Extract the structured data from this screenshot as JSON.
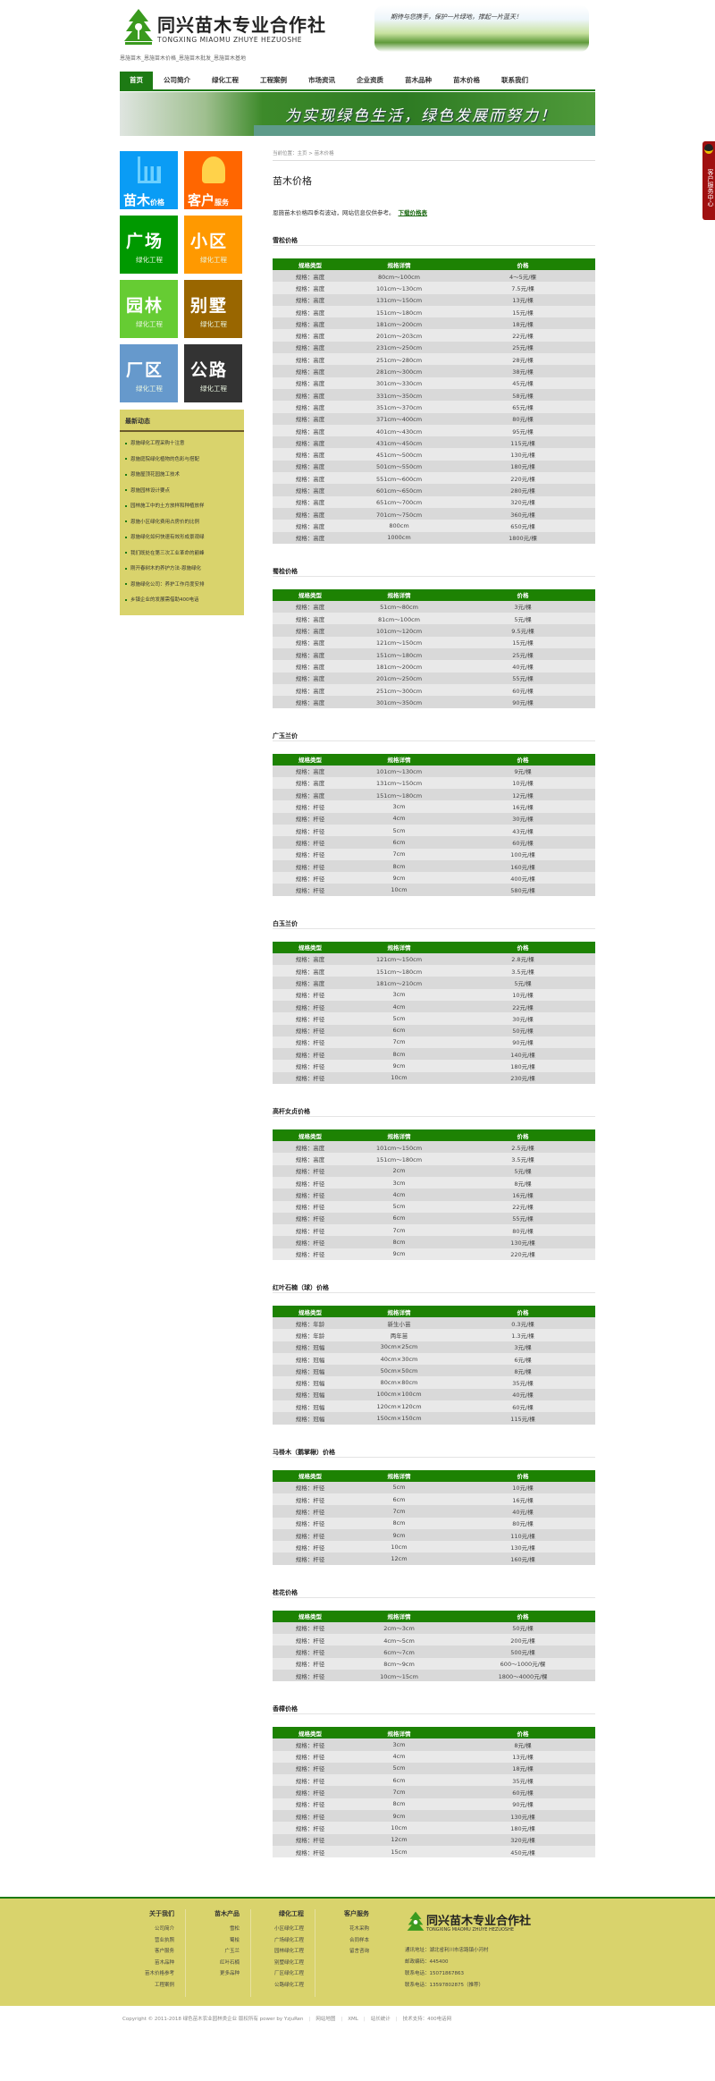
{
  "header": {
    "logo_cn": "同兴苗木专业合作社",
    "logo_en": "TONGXING MIAOMU ZHUYE HEZUOSHE",
    "tagline": "恩施苗木_恩施苗木价格_恩施苗木批发_恩施苗木基地",
    "slogan": "期待与您携手，保护一片绿地，撑起一片蓝天！"
  },
  "nav": [
    "首页",
    "公司简介",
    "绿化工程",
    "工程案例",
    "市场资讯",
    "企业资质",
    "苗木品种",
    "苗木价格",
    "联系我们"
  ],
  "banner": {
    "text": "为实现绿色生活，绿色发展而努力！"
  },
  "sidebar": {
    "tiles": [
      {
        "big": "苗木",
        "small": "价格",
        "color": "#0a9cf5",
        "icon": "chart-icon"
      },
      {
        "big": "客户",
        "small": "服务",
        "color": "#ff6600",
        "icon": "person-icon"
      },
      {
        "big": "广场",
        "small": "绿化工程",
        "color": "#009900"
      },
      {
        "big": "小区",
        "small": "绿化工程",
        "color": "#ff9900"
      },
      {
        "big": "园林",
        "small": "绿化工程",
        "color": "#66cc33"
      },
      {
        "big": "别墅",
        "small": "绿化工程",
        "color": "#996600"
      },
      {
        "big": "厂区",
        "small": "绿化工程",
        "color": "#6699cc"
      },
      {
        "big": "公路",
        "small": "绿化工程",
        "color": "#333333"
      }
    ],
    "news_title": "最新动态",
    "news": [
      "恩施绿化工程采购十注意",
      "恩施庭院绿化植物的色彩与搭配",
      "恩施屋顶花园施工技术",
      "恩施园林设计要点",
      "园林施工中的土方放样和种植放样",
      "恩施小区绿化费用占房价的比例",
      "恩施绿化如何快速有效形成景观绿",
      "我们既处在第三次工业革命的巅峰",
      "刚开春树木的养护方法-恩施绿化",
      "恩施绿化公司：养护工作月度安排",
      "乡镇企业的发展需借助400电话"
    ]
  },
  "main": {
    "breadcrumb": "当前位置：主页 > 苗木价格",
    "title": "苗木价格",
    "intro": "恩施苗木价格四季有波动，网站信息仅供参考。",
    "download_link": "下载价格表",
    "columns": [
      "规格类型",
      "规格详情",
      "价格"
    ],
    "sections": [
      {
        "title": "雪松价格",
        "rows": [
          [
            "规格：高度",
            "80cm～100cm",
            "4～5元/棵"
          ],
          [
            "规格：高度",
            "101cm～130cm",
            "7.5元/棵"
          ],
          [
            "规格：高度",
            "131cm～150cm",
            "13元/棵"
          ],
          [
            "规格：高度",
            "151cm～180cm",
            "15元/棵"
          ],
          [
            "规格：高度",
            "181cm～200cm",
            "18元/棵"
          ],
          [
            "规格：高度",
            "201cm～203cm",
            "22元/棵"
          ],
          [
            "规格：高度",
            "231cm～250cm",
            "25元/棵"
          ],
          [
            "规格：高度",
            "251cm～280cm",
            "28元/棵"
          ],
          [
            "规格：高度",
            "281cm～300cm",
            "38元/棵"
          ],
          [
            "规格：高度",
            "301cm～330cm",
            "45元/棵"
          ],
          [
            "规格：高度",
            "331cm～350cm",
            "58元/棵"
          ],
          [
            "规格：高度",
            "351cm～370cm",
            "65元/棵"
          ],
          [
            "规格：高度",
            "371cm～400cm",
            "80元/棵"
          ],
          [
            "规格：高度",
            "401cm～430cm",
            "95元/棵"
          ],
          [
            "规格：高度",
            "431cm～450cm",
            "115元/棵"
          ],
          [
            "规格：高度",
            "451cm～500cm",
            "130元/棵"
          ],
          [
            "规格：高度",
            "501cm～550cm",
            "180元/棵"
          ],
          [
            "规格：高度",
            "551cm～600cm",
            "220元/棵"
          ],
          [
            "规格：高度",
            "601cm～650cm",
            "280元/棵"
          ],
          [
            "规格：高度",
            "651cm～700cm",
            "320元/棵"
          ],
          [
            "规格：高度",
            "701cm～750cm",
            "360元/棵"
          ],
          [
            "规格：高度",
            "800cm",
            "650元/棵"
          ],
          [
            "规格：高度",
            "1000cm",
            "1800元/棵"
          ]
        ]
      },
      {
        "title": "蜀桧价格",
        "rows": [
          [
            "规格：高度",
            "51cm～80cm",
            "3元/棵"
          ],
          [
            "规格：高度",
            "81cm～100cm",
            "5元/棵"
          ],
          [
            "规格：高度",
            "101cm～120cm",
            "9.5元/棵"
          ],
          [
            "规格：高度",
            "121cm～150cm",
            "15元/棵"
          ],
          [
            "规格：高度",
            "151cm～180cm",
            "25元/棵"
          ],
          [
            "规格：高度",
            "181cm～200cm",
            "40元/棵"
          ],
          [
            "规格：高度",
            "201cm～250cm",
            "55元/棵"
          ],
          [
            "规格：高度",
            "251cm～300cm",
            "60元/棵"
          ],
          [
            "规格：高度",
            "301cm～350cm",
            "90元/棵"
          ]
        ]
      },
      {
        "title": "广玉兰价",
        "rows": [
          [
            "规格：高度",
            "101cm～130cm",
            "9元/棵"
          ],
          [
            "规格：高度",
            "131cm～150cm",
            "10元/棵"
          ],
          [
            "规格：高度",
            "151cm～180cm",
            "12元/棵"
          ],
          [
            "规格：杆径",
            "3cm",
            "16元/棵"
          ],
          [
            "规格：杆径",
            "4cm",
            "30元/棵"
          ],
          [
            "规格：杆径",
            "5cm",
            "43元/棵"
          ],
          [
            "规格：杆径",
            "6cm",
            "60元/棵"
          ],
          [
            "规格：杆径",
            "7cm",
            "100元/棵"
          ],
          [
            "规格：杆径",
            "8cm",
            "160元/棵"
          ],
          [
            "规格：杆径",
            "9cm",
            "400元/棵"
          ],
          [
            "规格：杆径",
            "10cm",
            "580元/棵"
          ]
        ]
      },
      {
        "title": "白玉兰价",
        "rows": [
          [
            "规格：高度",
            "121cm～150cm",
            "2.8元/棵"
          ],
          [
            "规格：高度",
            "151cm～180cm",
            "3.5元/棵"
          ],
          [
            "规格：高度",
            "181cm～210cm",
            "5元/棵"
          ],
          [
            "规格：杆径",
            "3cm",
            "10元/棵"
          ],
          [
            "规格：杆径",
            "4cm",
            "22元/棵"
          ],
          [
            "规格：杆径",
            "5cm",
            "30元/棵"
          ],
          [
            "规格：杆径",
            "6cm",
            "50元/棵"
          ],
          [
            "规格：杆径",
            "7cm",
            "90元/棵"
          ],
          [
            "规格：杆径",
            "8cm",
            "140元/棵"
          ],
          [
            "规格：杆径",
            "9cm",
            "180元/棵"
          ],
          [
            "规格：杆径",
            "10cm",
            "230元/棵"
          ]
        ]
      },
      {
        "title": "高杆女贞价格",
        "rows": [
          [
            "规格：高度",
            "101cm～150cm",
            "2.5元/棵"
          ],
          [
            "规格：高度",
            "151cm～180cm",
            "3.5元/棵"
          ],
          [
            "规格：杆径",
            "2cm",
            "5元/棵"
          ],
          [
            "规格：杆径",
            "3cm",
            "8元/棵"
          ],
          [
            "规格：杆径",
            "4cm",
            "16元/棵"
          ],
          [
            "规格：杆径",
            "5cm",
            "22元/棵"
          ],
          [
            "规格：杆径",
            "6cm",
            "55元/棵"
          ],
          [
            "规格：杆径",
            "7cm",
            "80元/棵"
          ],
          [
            "规格：杆径",
            "8cm",
            "130元/棵"
          ],
          [
            "规格：杆径",
            "9cm",
            "220元/棵"
          ]
        ]
      },
      {
        "title": "红叶石楠（球）价格",
        "rows": [
          [
            "规格：年龄",
            "新生小苗",
            "0.3元/棵"
          ],
          [
            "规格：年龄",
            "两年苗",
            "1.3元/棵"
          ],
          [
            "规格：冠幅",
            "30cm×25cm",
            "3元/棵"
          ],
          [
            "规格：冠幅",
            "40cm×30cm",
            "6元/棵"
          ],
          [
            "规格：冠幅",
            "50cm×50cm",
            "8元/棵"
          ],
          [
            "规格：冠幅",
            "80cm×80cm",
            "35元/棵"
          ],
          [
            "规格：冠幅",
            "100cm×100cm",
            "40元/棵"
          ],
          [
            "规格：冠幅",
            "120cm×120cm",
            "60元/棵"
          ],
          [
            "规格：冠幅",
            "150cm×150cm",
            "115元/棵"
          ]
        ]
      },
      {
        "title": "马褂木（鹅掌楸）价格",
        "rows": [
          [
            "规格：杆径",
            "5cm",
            "10元/棵"
          ],
          [
            "规格：杆径",
            "6cm",
            "16元/棵"
          ],
          [
            "规格：杆径",
            "7cm",
            "40元/棵"
          ],
          [
            "规格：杆径",
            "8cm",
            "80元/棵"
          ],
          [
            "规格：杆径",
            "9cm",
            "110元/棵"
          ],
          [
            "规格：杆径",
            "10cm",
            "130元/棵"
          ],
          [
            "规格：杆径",
            "12cm",
            "160元/棵"
          ]
        ]
      },
      {
        "title": "桂花价格",
        "rows": [
          [
            "规格：杆径",
            "2cm～3cm",
            "50元/棵"
          ],
          [
            "规格：杆径",
            "4cm～5cm",
            "200元/棵"
          ],
          [
            "规格：杆径",
            "6cm～7cm",
            "500元/棵"
          ],
          [
            "规格：杆径",
            "8cm～9cm",
            "600～1000元/棵"
          ],
          [
            "规格：杆径",
            "10cm～15cm",
            "1800～4000元/棵"
          ]
        ]
      },
      {
        "title": "香樟价格",
        "rows": [
          [
            "规格：杆径",
            "3cm",
            "8元/棵"
          ],
          [
            "规格：杆径",
            "4cm",
            "13元/棵"
          ],
          [
            "规格：杆径",
            "5cm",
            "18元/棵"
          ],
          [
            "规格：杆径",
            "6cm",
            "35元/棵"
          ],
          [
            "规格：杆径",
            "7cm",
            "60元/棵"
          ],
          [
            "规格：杆径",
            "8cm",
            "90元/棵"
          ],
          [
            "规格：杆径",
            "9cm",
            "130元/棵"
          ],
          [
            "规格：杆径",
            "10cm",
            "180元/棵"
          ],
          [
            "规格：杆径",
            "12cm",
            "320元/棵"
          ],
          [
            "规格：杆径",
            "15cm",
            "450元/棵"
          ]
        ]
      }
    ]
  },
  "float_service": {
    "label": "客户服务中心"
  },
  "footer": {
    "columns": [
      {
        "title": "关于我们",
        "items": [
          "公司简介",
          "营业执照",
          "客户服务",
          "苗木品种",
          "苗木价格参考",
          "工程案例"
        ]
      },
      {
        "title": "苗木产品",
        "items": [
          "雪松",
          "蜀桧",
          "广玉兰",
          "红叶石楠",
          "更多品种"
        ]
      },
      {
        "title": "绿化工程",
        "items": [
          "小区绿化工程",
          "广场绿化工程",
          "园林绿化工程",
          "别墅绿化工程",
          "厂区绿化工程",
          "公路绿化工程"
        ]
      },
      {
        "title": "客户服务",
        "items": [
          "花木采购",
          "合同样本",
          "留言咨询"
        ]
      }
    ],
    "logo_cn": "同兴苗木专业合作社",
    "logo_en": "TONGXING MIAOMU ZHUYE HEZUOSHE",
    "contact": [
      "通讯地址：湖北省利川市忠路镇小河村",
      "邮政编码：445400",
      "联系电话：15071867863",
      "联系电话：13597802875（推荐）"
    ],
    "copyright": "Copyright © 2011-2018 绿色苗木农业园林类企业 版权所有 power by YzjuRen",
    "links": [
      "网站地图",
      "XML",
      "站长统计",
      "技术支持：400电话网"
    ]
  }
}
